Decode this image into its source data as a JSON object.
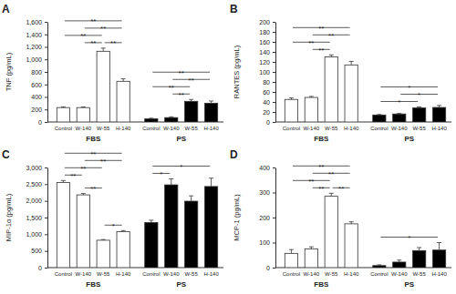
{
  "chart_data": [
    {
      "type": "bar",
      "title": "A",
      "y_label": "TNF (pg/mL)",
      "categories": [
        "Control",
        "W-140",
        "W-55",
        "H-140"
      ],
      "series": [
        {
          "name": "FBS",
          "color": "#ffffff",
          "values": [
            230,
            230,
            1130,
            650
          ],
          "errors": [
            12,
            10,
            50,
            40
          ],
          "significance": [
            {
              "from": "Control",
              "to": "W-55",
              "label": "**"
            },
            {
              "from": "Control",
              "to": "H-140",
              "label": "**"
            },
            {
              "from": "W-140",
              "to": "W-55",
              "label": "**"
            },
            {
              "from": "W-140",
              "to": "H-140",
              "label": "**"
            },
            {
              "from": "W-55",
              "to": "H-140",
              "label": "**"
            }
          ]
        },
        {
          "name": "PS",
          "color": "#000000",
          "values": [
            50,
            70,
            330,
            300
          ],
          "errors": [
            10,
            12,
            30,
            35
          ],
          "significance": [
            {
              "from": "Control",
              "to": "W-55",
              "label": "**"
            },
            {
              "from": "Control",
              "to": "H-140",
              "label": "**"
            },
            {
              "from": "W-140",
              "to": "W-55",
              "label": "**"
            },
            {
              "from": "W-140",
              "to": "H-140",
              "label": "**"
            }
          ]
        }
      ],
      "ylim": [
        0,
        1600
      ],
      "yticks": [
        0,
        200,
        400,
        600,
        800,
        {
          "value": 1000,
          "label": "1,000"
        },
        {
          "value": 1200,
          "label": "1,200"
        },
        {
          "value": 1400,
          "label": "1,400"
        },
        {
          "value": 1600,
          "label": "1,600"
        }
      ]
    },
    {
      "type": "bar",
      "title": "B",
      "y_label": "RANTES (pg/mL)",
      "categories": [
        "Control",
        "W-140",
        "W-55",
        "H-140"
      ],
      "series": [
        {
          "name": "FBS",
          "color": "#ffffff",
          "values": [
            45,
            49,
            130,
            114
          ],
          "errors": [
            3,
            2,
            4,
            7
          ],
          "significance": [
            {
              "from": "Control",
              "to": "W-55",
              "label": "**"
            },
            {
              "from": "Control",
              "to": "H-140",
              "label": "**"
            },
            {
              "from": "W-140",
              "to": "W-55",
              "label": "**"
            },
            {
              "from": "W-140",
              "to": "H-140",
              "label": "**"
            }
          ]
        },
        {
          "name": "PS",
          "color": "#000000",
          "values": [
            14,
            16,
            28,
            29
          ],
          "errors": [
            1,
            1,
            2,
            4
          ],
          "significance": [
            {
              "from": "Control",
              "to": "W-55",
              "label": "*"
            },
            {
              "from": "Control",
              "to": "H-140",
              "label": "*"
            },
            {
              "from": "W-140",
              "to": "H-140",
              "label": "*"
            }
          ]
        }
      ],
      "ylim": [
        0,
        200
      ],
      "yticks": [
        0,
        20,
        40,
        60,
        80,
        100,
        120,
        140,
        160,
        180,
        200
      ]
    },
    {
      "type": "bar",
      "title": "C",
      "y_label": "MIP-1α (pg/mL)",
      "categories": [
        "Control",
        "W-140",
        "W-55",
        "H-140"
      ],
      "series": [
        {
          "name": "FBS",
          "color": "#ffffff",
          "values": [
            2550,
            2180,
            820,
            1080
          ],
          "errors": [
            60,
            40,
            20,
            30
          ],
          "significance": [
            {
              "from": "Control",
              "to": "W-140",
              "label": "**"
            },
            {
              "from": "Control",
              "to": "W-55",
              "label": "**"
            },
            {
              "from": "Control",
              "to": "H-140",
              "label": "**"
            },
            {
              "from": "W-140",
              "to": "W-55",
              "label": "**"
            },
            {
              "from": "W-140",
              "to": "H-140",
              "label": "**"
            },
            {
              "from": "W-55",
              "to": "H-140",
              "label": "*"
            }
          ]
        },
        {
          "name": "PS",
          "color": "#000000",
          "values": [
            1350,
            2480,
            1990,
            2430
          ],
          "errors": [
            70,
            180,
            160,
            250
          ],
          "significance": [
            {
              "from": "Control",
              "to": "W-140",
              "label": "*"
            },
            {
              "from": "Control",
              "to": "H-140",
              "label": "*"
            }
          ]
        }
      ],
      "ylim": [
        0,
        3000
      ],
      "yticks": [
        0,
        500,
        {
          "value": 1000,
          "label": "1,000"
        },
        {
          "value": 1500,
          "label": "1,500"
        },
        {
          "value": 2000,
          "label": "2,000"
        },
        {
          "value": 2500,
          "label": "2,500"
        },
        {
          "value": 3000,
          "label": "3,000"
        }
      ]
    },
    {
      "type": "bar",
      "title": "D",
      "y_label": "MCP-1 (pg/mL)",
      "categories": [
        "Control",
        "W-140",
        "W-55",
        "H-140"
      ],
      "series": [
        {
          "name": "FBS",
          "color": "#ffffff",
          "values": [
            57,
            75,
            285,
            175
          ],
          "errors": [
            15,
            8,
            12,
            8
          ],
          "significance": [
            {
              "from": "Control",
              "to": "W-55",
              "label": "**"
            },
            {
              "from": "Control",
              "to": "H-140",
              "label": "**"
            },
            {
              "from": "W-140",
              "to": "W-55",
              "label": "**"
            },
            {
              "from": "W-140",
              "to": "H-140",
              "label": "**"
            },
            {
              "from": "W-55",
              "to": "H-140",
              "label": "**"
            }
          ]
        },
        {
          "name": "PS",
          "color": "#000000",
          "values": [
            8,
            22,
            68,
            70
          ],
          "errors": [
            3,
            8,
            12,
            30
          ],
          "significance": [
            {
              "from": "Control",
              "to": "H-140",
              "label": "*"
            }
          ]
        }
      ],
      "ylim": [
        0,
        400
      ],
      "yticks": [
        0,
        100,
        200,
        300,
        400
      ]
    }
  ]
}
